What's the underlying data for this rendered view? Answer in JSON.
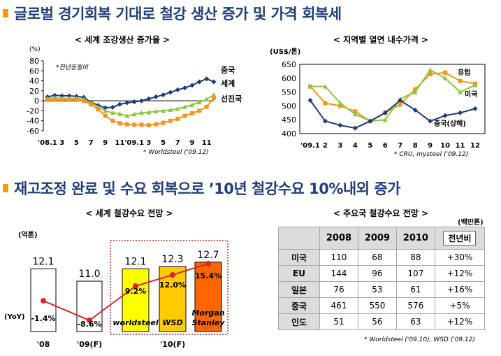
{
  "headline1": "글로벌 경기회복 기대로 철강 생산 증가 및 가격 회복세",
  "headline2": "재고조정 완료 및 수요 회복으로 ’10년 철강수요 10%내외 증가",
  "colors": {
    "china": "#1f3a7a",
    "world": "#8dc63f",
    "developed": "#f7941d",
    "headline": "#1f3e7a",
    "bullet": "#f39c00",
    "worldsteel_bar": "#ffff00",
    "wsd_bar": "#ffcc00",
    "morgan_bar": "#ff6600",
    "yoy_line": "#d9262c"
  },
  "chart_data": [
    {
      "type": "line",
      "title": "< 세계 조강생산 증가율 >",
      "ylabel": "(%)",
      "note": "*전년동월비",
      "source": "* Worldsteel ('09.12)",
      "ylim": [
        -60,
        80
      ],
      "yticks": [
        "80",
        "60",
        "40",
        "20",
        "0",
        "-20",
        "-40",
        "-60"
      ],
      "xticklabels": [
        "'08.1",
        "3",
        "5",
        "7",
        "9",
        "11",
        "'09.1",
        "3",
        "5",
        "7",
        "9",
        "11"
      ],
      "x_months": 23,
      "series": [
        {
          "name": "중국",
          "values": [
            8,
            11,
            10,
            10,
            9,
            7,
            -3,
            -9,
            -14,
            -13,
            -7,
            -4,
            -2,
            0,
            4,
            8,
            12,
            17,
            22,
            26,
            31,
            38,
            44,
            38
          ]
        },
        {
          "name": "세계",
          "values": [
            5,
            6,
            5,
            5,
            5,
            3,
            -4,
            -12,
            -20,
            -24,
            -26,
            -30,
            -27,
            -24,
            -23,
            -21,
            -20,
            -18,
            -16,
            -12,
            -8,
            -3,
            3,
            12
          ]
        },
        {
          "name": "선진국",
          "values": [
            2,
            2,
            2,
            2,
            2,
            0,
            -7,
            -17,
            -30,
            -40,
            -45,
            -47,
            -48,
            -48,
            -49,
            -47,
            -44,
            -40,
            -36,
            -30,
            -25,
            -20,
            -12,
            6
          ]
        }
      ]
    },
    {
      "type": "line",
      "title": "< 지역별 열연 내수가격 >",
      "ylabel": "(US$/톤)",
      "source": "* CRU, mysteel ('09.12)",
      "ylim": [
        400,
        650
      ],
      "yticks": [
        "650",
        "600",
        "550",
        "500",
        "450",
        "400"
      ],
      "xticklabels": [
        "'09.1",
        "2",
        "3",
        "4",
        "5",
        "6",
        "7",
        "8",
        "9",
        "10",
        "11",
        "12"
      ],
      "series": [
        {
          "name": "유럽",
          "values": [
            570,
            510,
            500,
            480,
            445,
            475,
            505,
            560,
            615,
            620,
            590,
            580
          ]
        },
        {
          "name": "미국",
          "values": [
            570,
            570,
            510,
            470,
            445,
            450,
            525,
            550,
            630,
            600,
            550,
            575
          ]
        },
        {
          "name": "중국(상해)",
          "values": [
            520,
            445,
            430,
            420,
            445,
            475,
            520,
            485,
            445,
            465,
            475,
            490
          ]
        }
      ]
    },
    {
      "type": "bar",
      "title": "< 세계 철강수요 전망 >",
      "unit": "(억톤)",
      "yoy_label": "(YoY)",
      "ylim": [
        0,
        14
      ],
      "categories": [
        "'08",
        "'09(F)",
        "worldsteel",
        "WSD",
        "Morgan Stanley"
      ],
      "values": [
        12.1,
        11.0,
        12.1,
        12.3,
        12.7
      ],
      "value_labels": [
        "12.1",
        "11.0",
        "12.1",
        "12.3",
        "12.7"
      ],
      "yoy": [
        -1.4,
        -8.6,
        9.2,
        12.0,
        15.4
      ],
      "yoy_labels": [
        "-1.4%",
        "-8.6%",
        "9.2%",
        "12.0%",
        "15.4%"
      ],
      "bar_names": [
        "",
        "",
        "worldsteel",
        "WSD",
        "Morgan\nStanley"
      ],
      "group_labels": [
        "'08",
        "'09(F)",
        "'10(F)"
      ]
    },
    {
      "type": "table",
      "title": "< 주요국 철강수요 전망 >",
      "unit": "(백만톤)",
      "source": "* Worldsteel ('09.10), WSD ('09.12)",
      "columns": [
        "",
        "2008",
        "2009",
        "2010",
        "전년비"
      ],
      "rows": [
        [
          "미국",
          "110",
          "68",
          "88",
          "+30%"
        ],
        [
          "EU",
          "144",
          "96",
          "107",
          "+12%"
        ],
        [
          "일본",
          "76",
          "53",
          "61",
          "+16%"
        ],
        [
          "중국",
          "461",
          "550",
          "576",
          "+5%"
        ],
        [
          "인도",
          "51",
          "56",
          "63",
          "+12%"
        ]
      ]
    }
  ]
}
